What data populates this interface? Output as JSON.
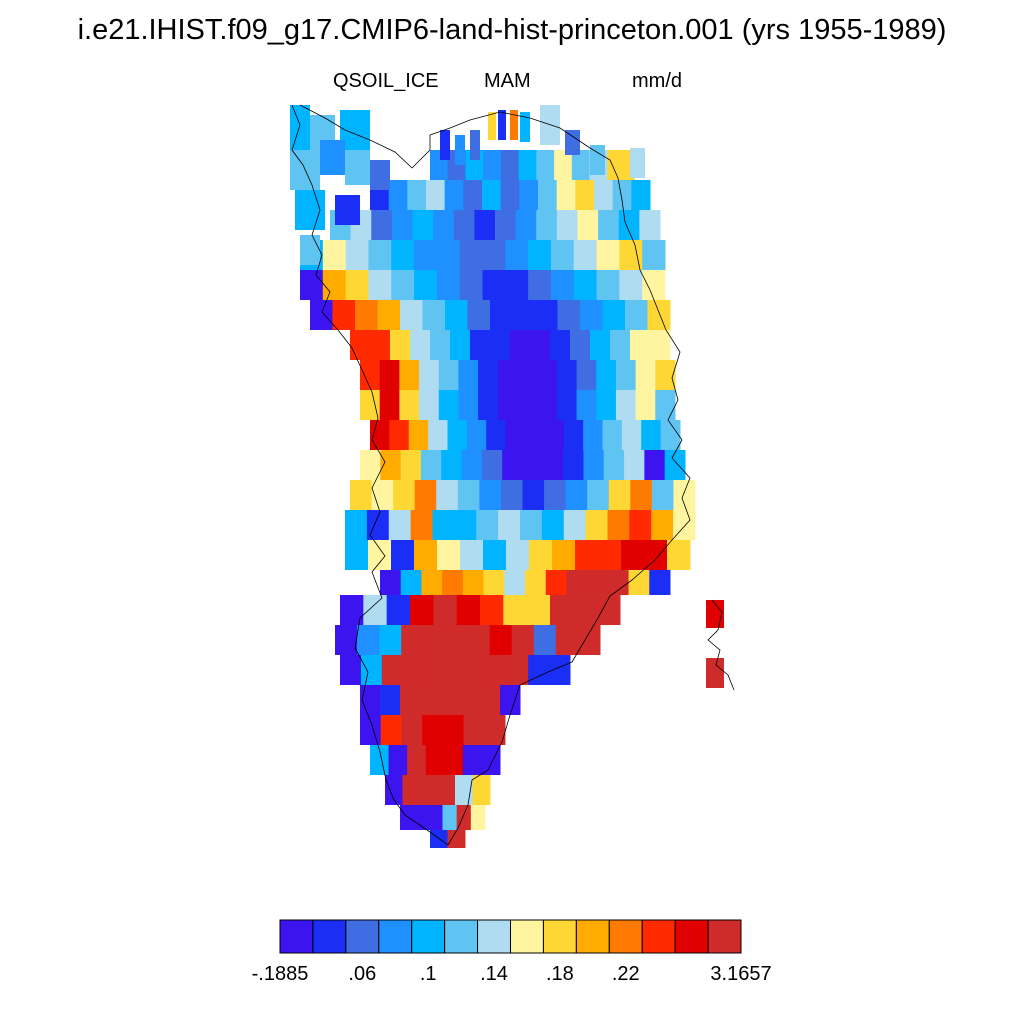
{
  "header": {
    "title": "i.e21.IHIST.f09_g17.CMIP6-land-hist-princeton.001 (yrs 1955-1989)",
    "variable": "QSOIL_ICE",
    "season": "MAM",
    "units": "mm/d"
  },
  "colorbar": {
    "colors": [
      "#3b14f0",
      "#1a2ef5",
      "#3f6ee2",
      "#1e90ff",
      "#00b4ff",
      "#5fc4f2",
      "#b0dcf2",
      "#fff5a0",
      "#ffd735",
      "#ffab00",
      "#ff7a00",
      "#ff2a00",
      "#e00000",
      "#d02b2b"
    ],
    "tick_labels": [
      "-.1885",
      ".06",
      ".1",
      ".14",
      ".18",
      ".22",
      "3.1657"
    ]
  }
}
